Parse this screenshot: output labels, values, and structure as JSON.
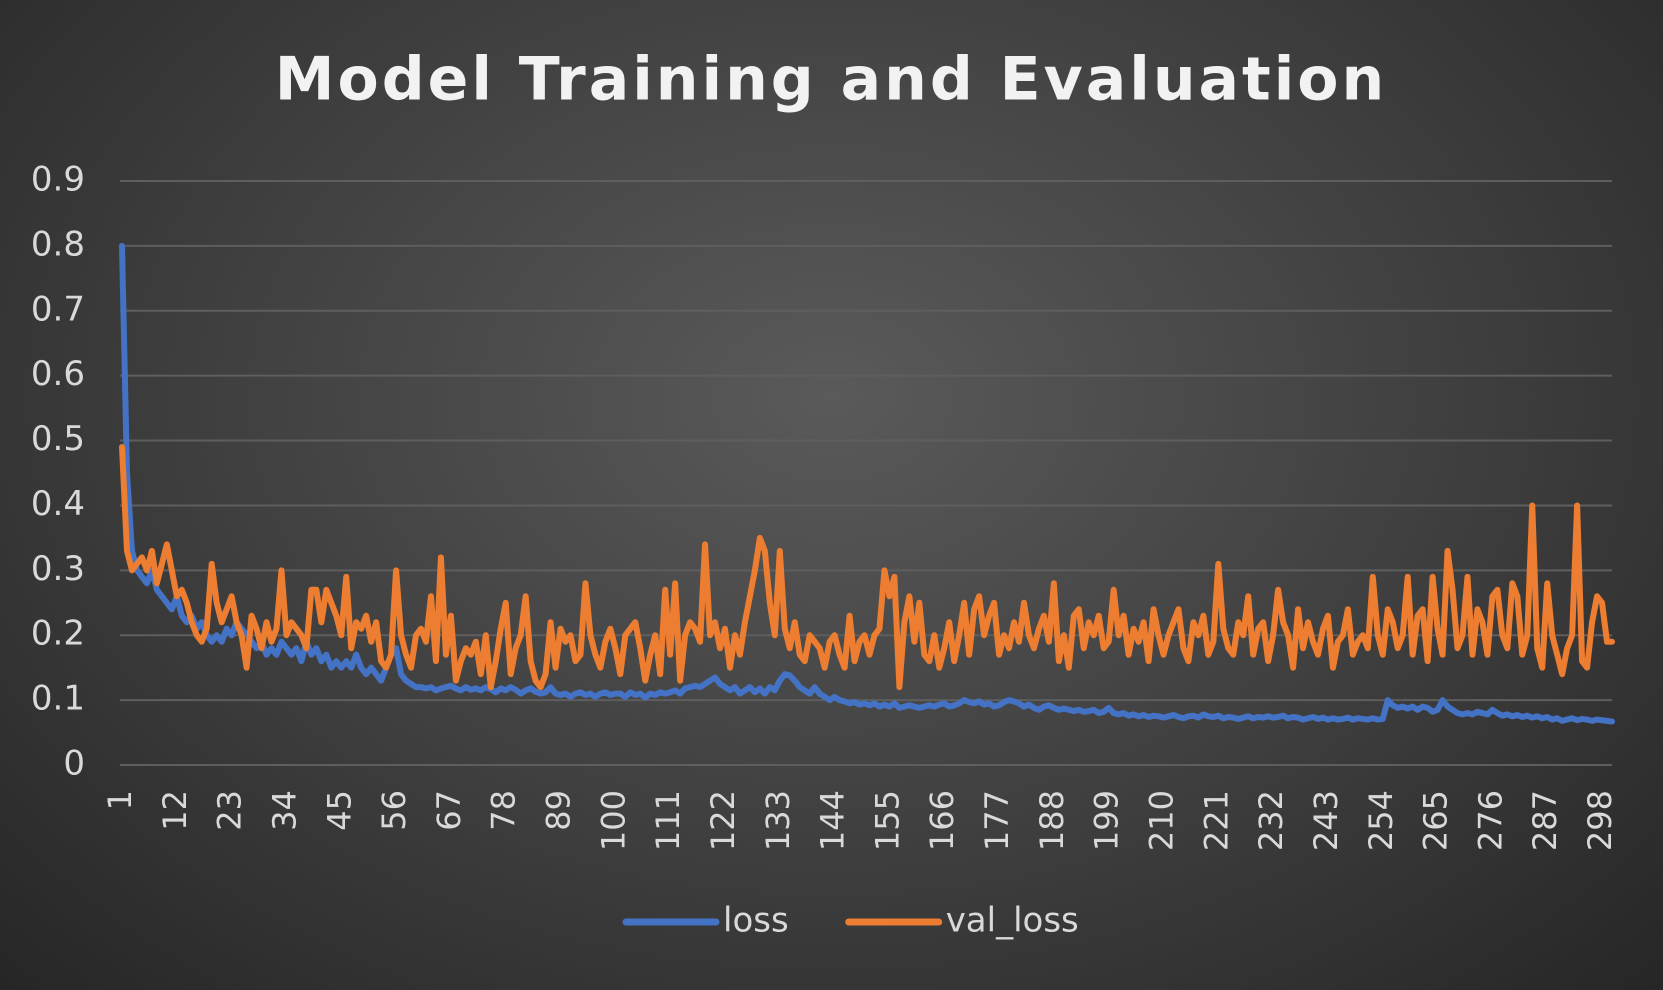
{
  "chart_data": {
    "type": "line",
    "title": "Model Training and Evaluation",
    "categories": [
      "1",
      null,
      null,
      null,
      null,
      null,
      null,
      null,
      null,
      null,
      null,
      "12",
      null,
      null,
      null,
      null,
      null,
      null,
      null,
      null,
      null,
      null,
      "23",
      null,
      null,
      null,
      null,
      null,
      null,
      null,
      null,
      null,
      null,
      "34",
      null,
      null,
      null,
      null,
      null,
      null,
      null,
      null,
      null,
      null,
      "45",
      null,
      null,
      null,
      null,
      null,
      null,
      null,
      null,
      null,
      null,
      "56",
      null,
      null,
      null,
      null,
      null,
      null,
      null,
      null,
      null,
      null,
      "67",
      null,
      null,
      null,
      null,
      null,
      null,
      null,
      null,
      null,
      null,
      "78",
      null,
      null,
      null,
      null,
      null,
      null,
      null,
      null,
      null,
      null,
      "89",
      null,
      null,
      null,
      null,
      null,
      null,
      null,
      null,
      null,
      null,
      "100",
      null,
      null,
      null,
      null,
      null,
      null,
      null,
      null,
      null,
      null,
      "111",
      null,
      null,
      null,
      null,
      null,
      null,
      null,
      null,
      null,
      null,
      "122",
      null,
      null,
      null,
      null,
      null,
      null,
      null,
      null,
      null,
      null,
      "133",
      null,
      null,
      null,
      null,
      null,
      null,
      null,
      null,
      null,
      null,
      "144",
      null,
      null,
      null,
      null,
      null,
      null,
      null,
      null,
      null,
      null,
      "155",
      null,
      null,
      null,
      null,
      null,
      null,
      null,
      null,
      null,
      null,
      "166",
      null,
      null,
      null,
      null,
      null,
      null,
      null,
      null,
      null,
      null,
      "177",
      null,
      null,
      null,
      null,
      null,
      null,
      null,
      null,
      null,
      null,
      "188",
      null,
      null,
      null,
      null,
      null,
      null,
      null,
      null,
      null,
      null,
      "199",
      null,
      null,
      null,
      null,
      null,
      null,
      null,
      null,
      null,
      null,
      "210",
      null,
      null,
      null,
      null,
      null,
      null,
      null,
      null,
      null,
      null,
      "221",
      null,
      null,
      null,
      null,
      null,
      null,
      null,
      null,
      null,
      null,
      "232",
      null,
      null,
      null,
      null,
      null,
      null,
      null,
      null,
      null,
      null,
      "243",
      null,
      null,
      null,
      null,
      null,
      null,
      null,
      null,
      null,
      null,
      "254",
      null,
      null,
      null,
      null,
      null,
      null,
      null,
      null,
      null,
      null,
      "265",
      null,
      null,
      null,
      null,
      null,
      null,
      null,
      null,
      null,
      null,
      "276",
      null,
      null,
      null,
      null,
      null,
      null,
      null,
      null,
      null,
      null,
      "287",
      null,
      null,
      null,
      null,
      null,
      null,
      null,
      null,
      null,
      null,
      "298",
      null,
      null
    ],
    "series": [
      {
        "name": "loss",
        "color": "#4472c4",
        "values": [
          0.8,
          0.45,
          0.33,
          0.3,
          0.29,
          0.28,
          0.3,
          0.27,
          0.26,
          0.25,
          0.24,
          0.26,
          0.23,
          0.22,
          0.23,
          0.21,
          0.22,
          0.2,
          0.19,
          0.2,
          0.19,
          0.21,
          0.2,
          0.22,
          0.21,
          0.2,
          0.19,
          0.18,
          0.19,
          0.17,
          0.18,
          0.17,
          0.19,
          0.18,
          0.17,
          0.18,
          0.16,
          0.19,
          0.17,
          0.18,
          0.16,
          0.17,
          0.15,
          0.16,
          0.15,
          0.16,
          0.15,
          0.17,
          0.15,
          0.14,
          0.15,
          0.14,
          0.13,
          0.15,
          0.17,
          0.18,
          0.14,
          0.13,
          0.125,
          0.12,
          0.12,
          0.118,
          0.12,
          0.115,
          0.118,
          0.12,
          0.122,
          0.118,
          0.115,
          0.12,
          0.116,
          0.118,
          0.115,
          0.12,
          0.117,
          0.112,
          0.118,
          0.115,
          0.12,
          0.116,
          0.11,
          0.115,
          0.118,
          0.113,
          0.11,
          0.112,
          0.12,
          0.11,
          0.108,
          0.11,
          0.105,
          0.11,
          0.112,
          0.108,
          0.11,
          0.105,
          0.11,
          0.112,
          0.108,
          0.11,
          0.11,
          0.105,
          0.112,
          0.108,
          0.11,
          0.104,
          0.11,
          0.108,
          0.112,
          0.11,
          0.112,
          0.115,
          0.11,
          0.118,
          0.12,
          0.122,
          0.12,
          0.125,
          0.13,
          0.135,
          0.125,
          0.12,
          0.115,
          0.12,
          0.11,
          0.115,
          0.12,
          0.112,
          0.118,
          0.11,
          0.12,
          0.115,
          0.13,
          0.14,
          0.138,
          0.13,
          0.12,
          0.115,
          0.11,
          0.12,
          0.11,
          0.105,
          0.1,
          0.105,
          0.1,
          0.098,
          0.095,
          0.097,
          0.093,
          0.095,
          0.092,
          0.095,
          0.09,
          0.093,
          0.09,
          0.095,
          0.088,
          0.09,
          0.092,
          0.09,
          0.088,
          0.09,
          0.092,
          0.09,
          0.093,
          0.095,
          0.09,
          0.092,
          0.095,
          0.1,
          0.097,
          0.095,
          0.098,
          0.093,
          0.095,
          0.09,
          0.092,
          0.097,
          0.1,
          0.098,
          0.095,
          0.09,
          0.093,
          0.088,
          0.085,
          0.09,
          0.092,
          0.088,
          0.085,
          0.087,
          0.085,
          0.083,
          0.085,
          0.082,
          0.083,
          0.085,
          0.08,
          0.082,
          0.088,
          0.08,
          0.078,
          0.08,
          0.076,
          0.078,
          0.075,
          0.077,
          0.074,
          0.076,
          0.075,
          0.073,
          0.075,
          0.077,
          0.074,
          0.072,
          0.075,
          0.076,
          0.073,
          0.078,
          0.075,
          0.074,
          0.076,
          0.072,
          0.074,
          0.073,
          0.071,
          0.073,
          0.075,
          0.072,
          0.074,
          0.073,
          0.075,
          0.073,
          0.074,
          0.076,
          0.072,
          0.074,
          0.073,
          0.07,
          0.072,
          0.074,
          0.071,
          0.073,
          0.07,
          0.072,
          0.07,
          0.071,
          0.073,
          0.07,
          0.072,
          0.071,
          0.07,
          0.072,
          0.07,
          0.071,
          0.1,
          0.092,
          0.088,
          0.09,
          0.087,
          0.09,
          0.085,
          0.09,
          0.088,
          0.082,
          0.085,
          0.1,
          0.09,
          0.085,
          0.08,
          0.078,
          0.08,
          0.078,
          0.082,
          0.08,
          0.078,
          0.085,
          0.08,
          0.076,
          0.078,
          0.075,
          0.077,
          0.074,
          0.076,
          0.073,
          0.075,
          0.072,
          0.074,
          0.07,
          0.072,
          0.068,
          0.07,
          0.072,
          0.069,
          0.071,
          0.07,
          0.068,
          0.07,
          0.069,
          0.068,
          0.067
        ]
      },
      {
        "name": "val_loss",
        "color": "#ed7d31",
        "values": [
          0.49,
          0.33,
          0.3,
          0.31,
          0.32,
          0.3,
          0.33,
          0.28,
          0.31,
          0.34,
          0.3,
          0.26,
          0.27,
          0.25,
          0.22,
          0.2,
          0.19,
          0.21,
          0.31,
          0.25,
          0.22,
          0.24,
          0.26,
          0.22,
          0.2,
          0.15,
          0.23,
          0.21,
          0.18,
          0.22,
          0.19,
          0.21,
          0.3,
          0.2,
          0.22,
          0.21,
          0.2,
          0.18,
          0.27,
          0.27,
          0.22,
          0.27,
          0.25,
          0.23,
          0.2,
          0.29,
          0.18,
          0.22,
          0.21,
          0.23,
          0.19,
          0.22,
          0.16,
          0.15,
          0.17,
          0.3,
          0.2,
          0.17,
          0.15,
          0.2,
          0.21,
          0.19,
          0.26,
          0.16,
          0.32,
          0.17,
          0.23,
          0.13,
          0.16,
          0.18,
          0.17,
          0.19,
          0.14,
          0.2,
          0.12,
          0.16,
          0.21,
          0.25,
          0.14,
          0.18,
          0.2,
          0.26,
          0.16,
          0.13,
          0.12,
          0.14,
          0.22,
          0.15,
          0.21,
          0.19,
          0.2,
          0.16,
          0.17,
          0.28,
          0.2,
          0.17,
          0.15,
          0.19,
          0.21,
          0.18,
          0.14,
          0.2,
          0.21,
          0.22,
          0.18,
          0.13,
          0.17,
          0.2,
          0.14,
          0.27,
          0.17,
          0.28,
          0.13,
          0.2,
          0.22,
          0.21,
          0.19,
          0.34,
          0.2,
          0.22,
          0.18,
          0.21,
          0.15,
          0.2,
          0.17,
          0.22,
          0.26,
          0.3,
          0.35,
          0.33,
          0.25,
          0.2,
          0.33,
          0.21,
          0.18,
          0.22,
          0.17,
          0.16,
          0.2,
          0.19,
          0.18,
          0.15,
          0.19,
          0.2,
          0.17,
          0.15,
          0.23,
          0.16,
          0.19,
          0.2,
          0.17,
          0.2,
          0.21,
          0.3,
          0.26,
          0.29,
          0.12,
          0.22,
          0.26,
          0.19,
          0.25,
          0.17,
          0.16,
          0.2,
          0.15,
          0.18,
          0.22,
          0.16,
          0.2,
          0.25,
          0.17,
          0.24,
          0.26,
          0.2,
          0.23,
          0.25,
          0.17,
          0.2,
          0.18,
          0.22,
          0.19,
          0.25,
          0.2,
          0.18,
          0.21,
          0.23,
          0.19,
          0.28,
          0.16,
          0.2,
          0.15,
          0.23,
          0.24,
          0.18,
          0.22,
          0.2,
          0.23,
          0.18,
          0.19,
          0.27,
          0.2,
          0.23,
          0.17,
          0.21,
          0.19,
          0.22,
          0.16,
          0.24,
          0.2,
          0.17,
          0.2,
          0.22,
          0.24,
          0.18,
          0.16,
          0.22,
          0.2,
          0.23,
          0.17,
          0.19,
          0.31,
          0.21,
          0.18,
          0.17,
          0.22,
          0.2,
          0.26,
          0.17,
          0.21,
          0.22,
          0.16,
          0.2,
          0.27,
          0.22,
          0.2,
          0.15,
          0.24,
          0.18,
          0.22,
          0.19,
          0.17,
          0.21,
          0.23,
          0.15,
          0.19,
          0.2,
          0.24,
          0.17,
          0.19,
          0.2,
          0.18,
          0.29,
          0.2,
          0.17,
          0.24,
          0.22,
          0.18,
          0.2,
          0.29,
          0.17,
          0.23,
          0.24,
          0.16,
          0.29,
          0.21,
          0.17,
          0.33,
          0.27,
          0.18,
          0.2,
          0.29,
          0.17,
          0.24,
          0.22,
          0.17,
          0.26,
          0.27,
          0.2,
          0.18,
          0.28,
          0.26,
          0.17,
          0.2,
          0.4,
          0.18,
          0.15,
          0.28,
          0.2,
          0.17,
          0.14,
          0.18,
          0.2,
          0.4,
          0.16,
          0.15,
          0.22,
          0.26,
          0.25,
          0.19,
          0.19
        ]
      }
    ],
    "ylim": [
      0,
      0.9
    ],
    "yticks": [
      0,
      0.1,
      0.2,
      0.3,
      0.4,
      0.5,
      0.6,
      0.7,
      0.8,
      0.9
    ],
    "grid": true,
    "legend": "bottom"
  }
}
